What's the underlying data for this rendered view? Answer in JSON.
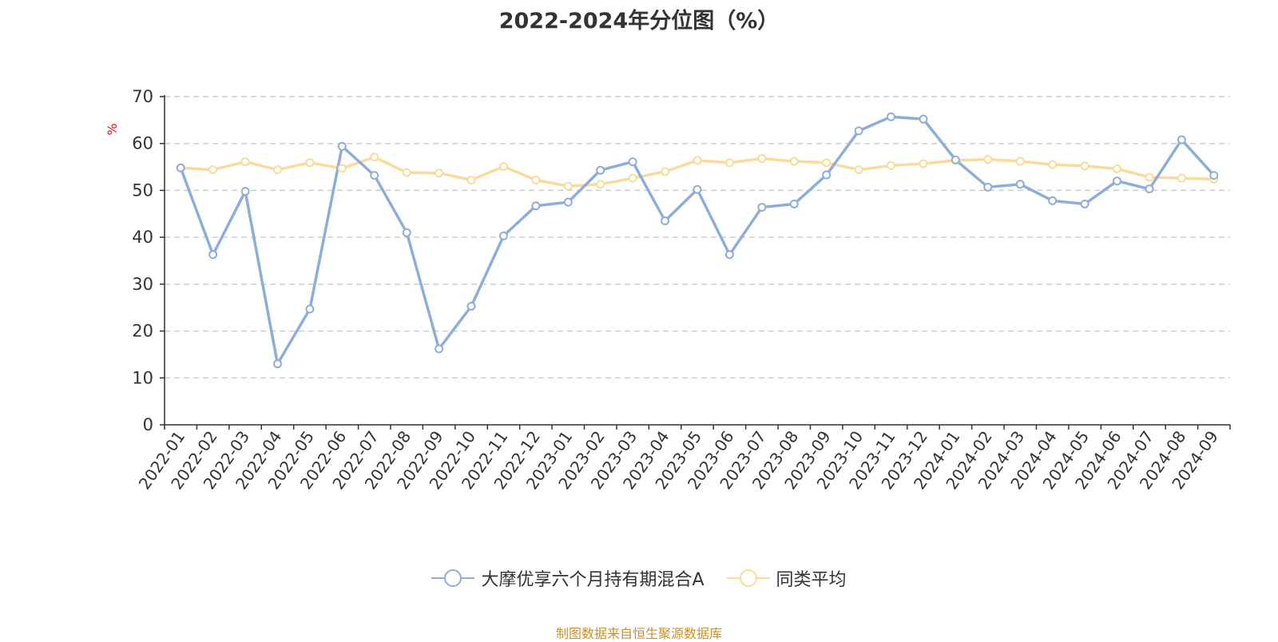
{
  "chart_data": {
    "type": "line",
    "title": "2022-2024年分位图（%）",
    "ylabel": "%",
    "xlabel": "",
    "ylim": [
      0,
      70
    ],
    "yticks": [
      0,
      10,
      20,
      30,
      40,
      50,
      60,
      70
    ],
    "grid": "horizontal dashed",
    "legend_position": "bottom-center",
    "categories": [
      "2022-01",
      "2022-02",
      "2022-03",
      "2022-04",
      "2022-05",
      "2022-06",
      "2022-07",
      "2022-08",
      "2022-09",
      "2022-10",
      "2022-11",
      "2022-12",
      "2023-01",
      "2023-02",
      "2023-03",
      "2023-04",
      "2023-05",
      "2023-06",
      "2023-07",
      "2023-08",
      "2023-09",
      "2023-10",
      "2023-11",
      "2023-12",
      "2024-01",
      "2024-02",
      "2024-03",
      "2024-04",
      "2024-05",
      "2024-06",
      "2024-07",
      "2024-08",
      "2024-09"
    ],
    "series": [
      {
        "name": "大摩优享六个月持有期混合A",
        "color": "#8eaed8",
        "values": [
          54.8,
          36.3,
          49.8,
          13.0,
          24.7,
          59.4,
          53.2,
          41.0,
          16.2,
          25.3,
          40.3,
          46.7,
          47.5,
          54.3,
          56.1,
          43.5,
          50.2,
          36.3,
          46.4,
          47.1,
          53.3,
          62.7,
          65.7,
          65.2,
          56.5,
          50.7,
          51.3,
          47.8,
          47.1,
          52.0,
          50.3,
          60.8,
          53.2
        ]
      },
      {
        "name": "同类平均",
        "color": "#fadb9a",
        "values": [
          54.8,
          54.4,
          56.1,
          54.4,
          55.9,
          54.7,
          57.1,
          53.8,
          53.7,
          52.2,
          55.1,
          52.2,
          50.9,
          51.3,
          52.6,
          54.0,
          56.4,
          55.9,
          56.8,
          56.2,
          55.9,
          54.4,
          55.3,
          55.7,
          56.4,
          56.6,
          56.2,
          55.5,
          55.2,
          54.6,
          52.8,
          52.6,
          52.4
        ]
      }
    ]
  },
  "source_note": "制图数据来自恒生聚源数据库"
}
